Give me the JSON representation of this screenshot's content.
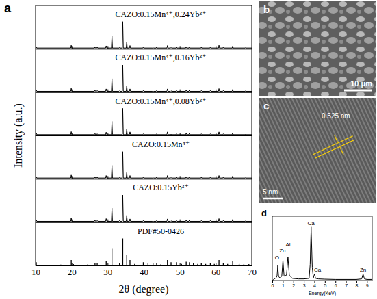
{
  "chart_data": [
    {
      "type": "line",
      "panel": "a",
      "xlabel": "2θ (degree)",
      "ylabel": "Intensity (a.u.)",
      "xlim": [
        10,
        70
      ],
      "xticks": [
        10,
        20,
        30,
        40,
        50,
        60,
        70
      ],
      "ylim": [
        0,
        160
      ],
      "tick_labels": "x",
      "color": "#000000",
      "x": [
        10,
        10.05,
        10.2,
        10.35,
        19.75,
        19.9,
        20.05,
        26.35,
        26.5,
        26.65,
        26.95,
        27.1,
        27.25,
        29.45,
        29.6,
        29.75,
        31.05,
        31.2,
        31.35,
        33.15,
        33.3,
        33.45,
        34.05,
        34.2,
        34.35,
        35.15,
        35.3,
        35.45,
        36.05,
        36.2,
        36.35,
        39.75,
        39.9,
        40.05,
        42.45,
        42.6,
        42.75,
        43.45,
        43.6,
        43.75,
        46.45,
        46.6,
        46.75,
        47.45,
        47.6,
        47.75,
        48.95,
        49.1,
        49.25,
        51.65,
        51.8,
        51.95,
        52.55,
        52.7,
        52.85,
        55.85,
        56,
        56.15,
        58.35,
        58.5,
        58.65,
        60.75,
        60.9,
        61.05,
        61.95,
        62.1,
        62.25,
        64.55,
        64.7,
        64.85,
        68.15,
        68.3,
        68.45,
        70
      ],
      "series": [
        {
          "name": "CAZO:0.15Mn⁴⁺,0.24Yb³⁺",
          "values": [
            3,
            3,
            8,
            3,
            3,
            13,
            3,
            3,
            6,
            3,
            3,
            6,
            3,
            3,
            11,
            3,
            3,
            48,
            3,
            3,
            5,
            3,
            3,
            100,
            3,
            3,
            25,
            3,
            3,
            12,
            3,
            3,
            6,
            3,
            3,
            5,
            3,
            3,
            6,
            3,
            3,
            12,
            3,
            3,
            5,
            3,
            3,
            6,
            3,
            3,
            8,
            3,
            3,
            8,
            3,
            3,
            6,
            3,
            3,
            6,
            3,
            3,
            13,
            3,
            3,
            6,
            3,
            3,
            10,
            3,
            3,
            5,
            3,
            3
          ]
        },
        {
          "name": "CAZO:0.15Mn⁴⁺,0.16Yb³⁺",
          "values": [
            3,
            3,
            8,
            3,
            3,
            14,
            3,
            3,
            7,
            3,
            3,
            6,
            3,
            3,
            12,
            3,
            3,
            50,
            3,
            3,
            5,
            3,
            3,
            100,
            3,
            3,
            24,
            3,
            3,
            12,
            3,
            3,
            6,
            3,
            3,
            5,
            3,
            3,
            6,
            3,
            3,
            12,
            3,
            3,
            5,
            3,
            3,
            6,
            3,
            3,
            8,
            3,
            3,
            8,
            3,
            3,
            6,
            3,
            3,
            6,
            3,
            3,
            13,
            3,
            3,
            6,
            3,
            3,
            10,
            3,
            3,
            5,
            3,
            3
          ]
        },
        {
          "name": "CAZO:0.15Mn⁴⁺,0.08Yb³⁺",
          "values": [
            3,
            3,
            9,
            3,
            3,
            14,
            3,
            3,
            7,
            3,
            3,
            6,
            3,
            3,
            12,
            3,
            3,
            52,
            3,
            3,
            5,
            3,
            3,
            100,
            3,
            3,
            24,
            3,
            3,
            13,
            3,
            3,
            6,
            3,
            3,
            5,
            3,
            3,
            6,
            3,
            3,
            13,
            3,
            3,
            5,
            3,
            3,
            6,
            3,
            3,
            8,
            3,
            3,
            8,
            3,
            3,
            6,
            3,
            3,
            6,
            3,
            3,
            13,
            3,
            3,
            6,
            3,
            3,
            10,
            3,
            3,
            5,
            3,
            3
          ]
        },
        {
          "name": "CAZO:0.15Mn⁴⁺",
          "values": [
            3,
            3,
            8,
            3,
            3,
            14,
            3,
            3,
            7,
            3,
            3,
            6,
            3,
            3,
            12,
            3,
            3,
            50,
            3,
            3,
            5,
            3,
            3,
            100,
            3,
            3,
            23,
            3,
            3,
            12,
            3,
            3,
            6,
            3,
            3,
            5,
            3,
            3,
            6,
            3,
            3,
            12,
            3,
            3,
            5,
            3,
            3,
            6,
            3,
            3,
            8,
            3,
            3,
            8,
            3,
            3,
            6,
            3,
            3,
            6,
            3,
            3,
            12,
            3,
            3,
            6,
            3,
            3,
            10,
            3,
            3,
            5,
            3,
            3
          ]
        },
        {
          "name": "CAZO:0.15Yb³⁺",
          "values": [
            3,
            3,
            9,
            3,
            3,
            15,
            3,
            3,
            7,
            3,
            3,
            6,
            3,
            3,
            13,
            3,
            3,
            52,
            3,
            3,
            6,
            3,
            3,
            100,
            3,
            3,
            25,
            3,
            3,
            12,
            3,
            3,
            6,
            3,
            3,
            5,
            3,
            3,
            6,
            3,
            3,
            12,
            3,
            3,
            5,
            3,
            3,
            6,
            3,
            3,
            8,
            3,
            3,
            8,
            3,
            3,
            6,
            3,
            3,
            6,
            3,
            3,
            13,
            3,
            3,
            6,
            3,
            3,
            10,
            3,
            3,
            5,
            3,
            3
          ]
        },
        {
          "name": "PDF#50-0426",
          "type": "bar",
          "x": [
            10.2,
            17.0,
            19.9,
            20.5,
            24.5,
            26.5,
            27.1,
            29.6,
            31.2,
            33.3,
            34.2,
            35.3,
            36.2,
            37.5,
            39.9,
            41.2,
            42.6,
            43.6,
            44.8,
            46.6,
            47.6,
            49.1,
            50.5,
            51.8,
            52.7,
            53.8,
            55.0,
            56.0,
            57.2,
            58.5,
            59.6,
            60.9,
            62.1,
            63.3,
            64.7,
            66.5,
            67.8,
            69.2
          ],
          "values": [
            12,
            3,
            20,
            5,
            5,
            10,
            10,
            18,
            62,
            10,
            100,
            38,
            20,
            6,
            12,
            8,
            8,
            10,
            5,
            20,
            12,
            12,
            6,
            14,
            12,
            10,
            6,
            10,
            6,
            10,
            6,
            20,
            10,
            6,
            18,
            6,
            5,
            5
          ]
        }
      ]
    },
    {
      "type": "line",
      "panel": "d",
      "xlabel": "Energy(KeV)",
      "xlim": [
        0,
        9.5
      ],
      "xticks": [
        0,
        1,
        2,
        3,
        4,
        5,
        6,
        7,
        8,
        9
      ],
      "ylim": [
        0,
        120
      ],
      "tick_labels": "x",
      "color": "#000000",
      "x": [
        0,
        0.2,
        0.35,
        0.45,
        0.52,
        0.6,
        0.75,
        0.9,
        1.01,
        1.12,
        1.35,
        1.49,
        1.62,
        1.9,
        2.5,
        3.0,
        3.5,
        3.6,
        3.69,
        3.8,
        3.9,
        4.01,
        4.12,
        4.4,
        5,
        6,
        7,
        8,
        8.5,
        8.63,
        8.76,
        9,
        9.5
      ],
      "values": [
        0,
        3,
        5,
        8,
        28,
        7,
        5,
        8,
        38,
        8,
        10,
        44,
        10,
        4,
        3,
        3,
        4,
        30,
        100,
        25,
        5,
        12,
        4,
        3,
        2.5,
        2,
        2,
        2,
        3,
        12,
        3,
        2,
        2
      ],
      "annotations": [
        {
          "text": "O",
          "x": 0.45,
          "y": 40
        },
        {
          "text": "Zn",
          "x": 0.97,
          "y": 52
        },
        {
          "text": "Al",
          "x": 1.5,
          "y": 64
        },
        {
          "text": "Ca",
          "x": 3.69,
          "y": 104
        },
        {
          "text": "Ca",
          "x": 4.3,
          "y": 16
        },
        {
          "text": "Zn",
          "x": 8.63,
          "y": 16
        }
      ]
    }
  ],
  "images": [
    {
      "panel": "b",
      "scale_bar": "10 μm"
    },
    {
      "panel": "c",
      "scale_bar": "5 nm",
      "annotation": "0.525 nm"
    }
  ]
}
